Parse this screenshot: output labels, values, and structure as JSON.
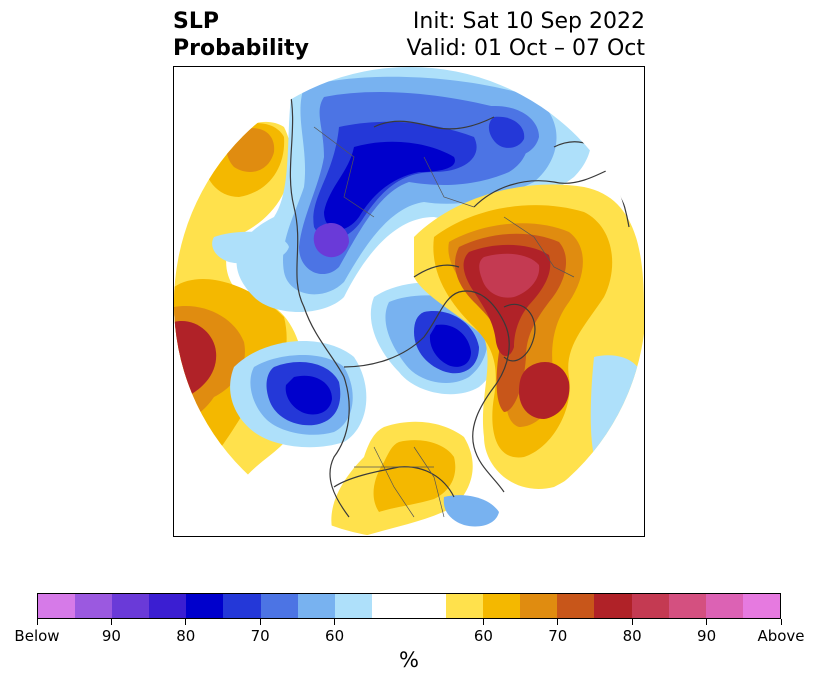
{
  "title": {
    "line1": "SLP",
    "line2": "Probability",
    "init": "Init: Sat 10 Sep 2022",
    "valid": "Valid: 01 Oct – 07 Oct"
  },
  "colorbar": {
    "unit": "%",
    "segments": [
      {
        "range": "Below",
        "color": "#d67ae8"
      },
      {
        "range": "90",
        "color": "#9b59e0"
      },
      {
        "range": "85",
        "color": "#6a3ad8"
      },
      {
        "range": "80",
        "color": "#3b1ed2"
      },
      {
        "range": "75",
        "color": "#0000cc"
      },
      {
        "range": "70",
        "color": "#2438d8"
      },
      {
        "range": "65",
        "color": "#4c74e4"
      },
      {
        "range": "60",
        "color": "#78b2f0"
      },
      {
        "range": "55",
        "color": "#aee0fa"
      },
      {
        "range": "neutral",
        "color": "#ffffff"
      },
      {
        "range": "55",
        "color": "#ffe14c"
      },
      {
        "range": "60",
        "color": "#f4b800"
      },
      {
        "range": "65",
        "color": "#e08c10"
      },
      {
        "range": "70",
        "color": "#c8561a"
      },
      {
        "range": "75",
        "color": "#b02228"
      },
      {
        "range": "80",
        "color": "#c43a52"
      },
      {
        "range": "85",
        "color": "#d45080"
      },
      {
        "range": "90",
        "color": "#dc62b4"
      },
      {
        "range": "Above",
        "color": "#e67ae0"
      }
    ],
    "tick_labels": [
      "Below",
      "90",
      "80",
      "70",
      "60",
      "60",
      "70",
      "80",
      "90",
      "Above"
    ]
  }
}
